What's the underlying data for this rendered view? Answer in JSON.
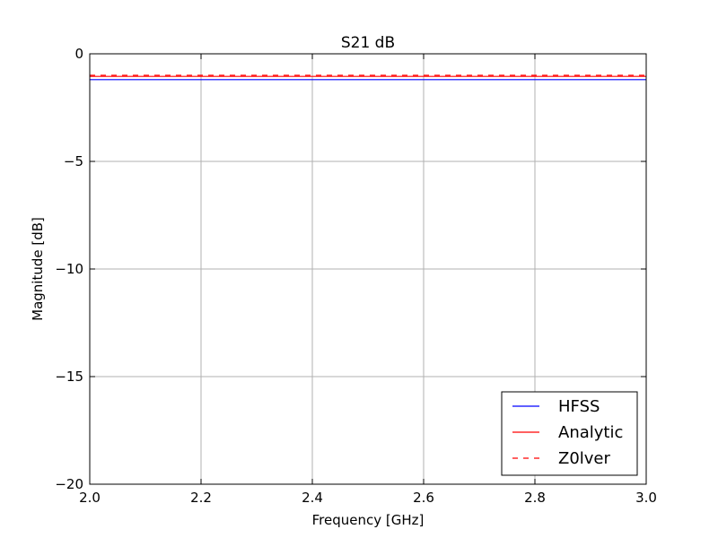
{
  "chart_data": {
    "type": "line",
    "title": "S21 dB",
    "xlabel": "Frequency [GHz]",
    "ylabel": "Magnitude [dB]",
    "xlim": [
      2.0,
      3.0
    ],
    "ylim": [
      -20,
      0
    ],
    "xticks": [
      2.0,
      2.2,
      2.4,
      2.6,
      2.8,
      3.0
    ],
    "xtick_labels": [
      "2.0",
      "2.2",
      "2.4",
      "2.6",
      "2.8",
      "3.0"
    ],
    "yticks": [
      0,
      -5,
      -10,
      -15,
      -20
    ],
    "ytick_labels": [
      "0",
      "−5",
      "−10",
      "−15",
      "−20"
    ],
    "grid": true,
    "legend_position": "lower-right",
    "series": [
      {
        "name": "HFSS",
        "color": "#0000ff",
        "linestyle": "solid",
        "x": [
          2.0,
          2.5,
          3.0
        ],
        "y": [
          -1.2,
          -1.2,
          -1.2
        ]
      },
      {
        "name": "Analytic",
        "color": "#ff0000",
        "linestyle": "solid",
        "x": [
          2.0,
          2.5,
          3.0
        ],
        "y": [
          -1.05,
          -1.05,
          -1.05
        ]
      },
      {
        "name": "Z0lver",
        "color": "#ff0000",
        "linestyle": "dashed",
        "x": [
          2.0,
          2.5,
          3.0
        ],
        "y": [
          -1.0,
          -1.0,
          -1.0
        ]
      }
    ]
  }
}
